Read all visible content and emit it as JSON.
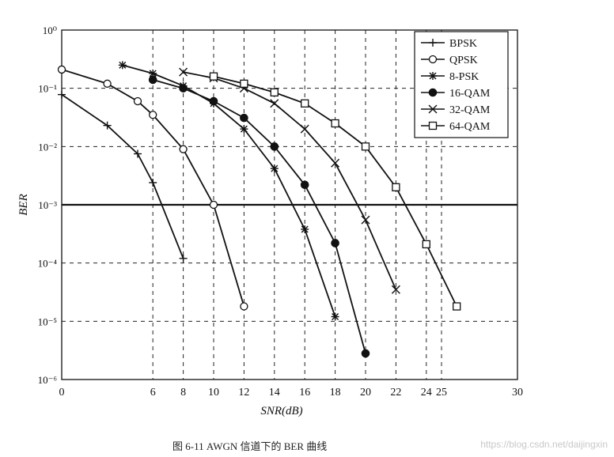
{
  "chart_data": {
    "type": "line",
    "xlabel": "SNR(dB)",
    "ylabel": "BER",
    "yscale": "log",
    "xlim": [
      0,
      30
    ],
    "ylim": [
      1e-06,
      1
    ],
    "grid": true,
    "legend_position": "top-right",
    "x_ticks": [
      "0",
      "6",
      "8",
      "10",
      "12",
      "14",
      "16",
      "18",
      "20",
      "22",
      "24",
      "25",
      "30"
    ],
    "x_tick_values": [
      0,
      6,
      8,
      10,
      12,
      14,
      16,
      18,
      20,
      22,
      24,
      25,
      30
    ],
    "y_ticks": [
      "10⁰",
      "10⁻¹",
      "10⁻²",
      "10⁻³",
      "10⁻⁴",
      "10⁻⁵",
      "10⁻⁶"
    ],
    "y_tick_values": [
      1,
      0.1,
      0.01,
      0.001,
      0.0001,
      1e-05,
      1e-06
    ],
    "reference_line": {
      "y": 0.001
    },
    "series": [
      {
        "name": "BPSK",
        "marker": "plus",
        "x": [
          0,
          3,
          5,
          6,
          8
        ],
        "y": [
          0.078,
          0.023,
          0.0075,
          0.0024,
          0.00012
        ]
      },
      {
        "name": "QPSK",
        "marker": "circle-open",
        "x": [
          0,
          3,
          5,
          6,
          8,
          10,
          12
        ],
        "y": [
          0.21,
          0.12,
          0.06,
          0.035,
          0.009,
          0.001,
          1.8e-05
        ]
      },
      {
        "name": "8-PSK",
        "marker": "star",
        "x": [
          4,
          6,
          8,
          10,
          12,
          14,
          16,
          18
        ],
        "y": [
          0.25,
          0.18,
          0.11,
          0.055,
          0.02,
          0.0042,
          0.00038,
          1.2e-05
        ]
      },
      {
        "name": "16-QAM",
        "marker": "circle-filled",
        "x": [
          6,
          8,
          10,
          12,
          14,
          16,
          18,
          20
        ],
        "y": [
          0.14,
          0.1,
          0.06,
          0.031,
          0.01,
          0.0022,
          0.00022,
          2.8e-06
        ]
      },
      {
        "name": "32-QAM",
        "marker": "x",
        "x": [
          8,
          10,
          12,
          14,
          16,
          18,
          20,
          22
        ],
        "y": [
          0.19,
          0.15,
          0.1,
          0.055,
          0.02,
          0.0052,
          0.00055,
          3.5e-05
        ]
      },
      {
        "name": "64-QAM",
        "marker": "square-open",
        "x": [
          10,
          12,
          14,
          16,
          18,
          20,
          22,
          24,
          26
        ],
        "y": [
          0.16,
          0.12,
          0.085,
          0.055,
          0.025,
          0.01,
          0.002,
          0.00021,
          1.8e-05
        ]
      }
    ]
  },
  "caption": "图 6-11   AWGN 信道下的 BER 曲线",
  "watermark": "https://blog.csdn.net/daijingxin"
}
